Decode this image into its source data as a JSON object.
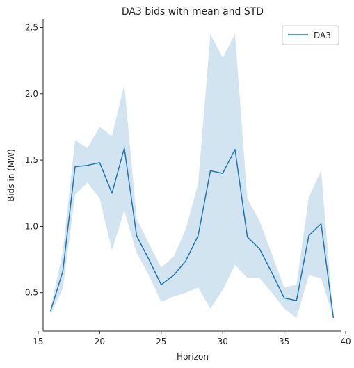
{
  "chart_data": {
    "type": "line",
    "title": "DA3 bids with mean and STD",
    "xlabel": "Horizon",
    "ylabel": "Bids in (MW)",
    "xlim": [
      15.4,
      39.6
    ],
    "ylim": [
      0.21,
      2.56
    ],
    "xticks": [
      15,
      20,
      25,
      30,
      35,
      40
    ],
    "yticks": [
      0.5,
      1.0,
      1.5,
      2.0,
      2.5
    ],
    "xtick_labels": [
      "15",
      "20",
      "25",
      "30",
      "35",
      "40"
    ],
    "ytick_labels": [
      "0.5",
      "1.0",
      "1.5",
      "2.0",
      "2.5"
    ],
    "grid": false,
    "legend_position": "top-right",
    "colors": {
      "line": "#1f77b4",
      "band": "#1f77b4",
      "axis": "#262626"
    },
    "series": [
      {
        "name": "DA3",
        "x": [
          16,
          17,
          18,
          19,
          20,
          21,
          22,
          23,
          24,
          25,
          26,
          27,
          28,
          29,
          30,
          31,
          32,
          33,
          34,
          35,
          36,
          37,
          38,
          39
        ],
        "mean": [
          0.36,
          0.66,
          1.45,
          1.46,
          1.48,
          1.25,
          1.59,
          0.93,
          0.75,
          0.56,
          0.63,
          0.74,
          0.93,
          1.42,
          1.4,
          1.58,
          0.92,
          0.83,
          0.65,
          0.46,
          0.44,
          0.93,
          1.02,
          0.31
        ],
        "lower": [
          0.34,
          0.53,
          1.24,
          1.33,
          1.21,
          0.82,
          1.12,
          0.8,
          0.63,
          0.43,
          0.47,
          0.5,
          0.54,
          0.38,
          0.52,
          0.71,
          0.61,
          0.61,
          0.5,
          0.38,
          0.31,
          0.63,
          0.61,
          0.31
        ],
        "upper": [
          0.38,
          0.81,
          1.65,
          1.59,
          1.75,
          1.68,
          2.07,
          1.06,
          0.87,
          0.69,
          0.77,
          0.98,
          1.32,
          2.45,
          2.27,
          2.45,
          1.21,
          1.04,
          0.79,
          0.54,
          0.56,
          1.22,
          1.42,
          0.31
        ]
      }
    ]
  }
}
